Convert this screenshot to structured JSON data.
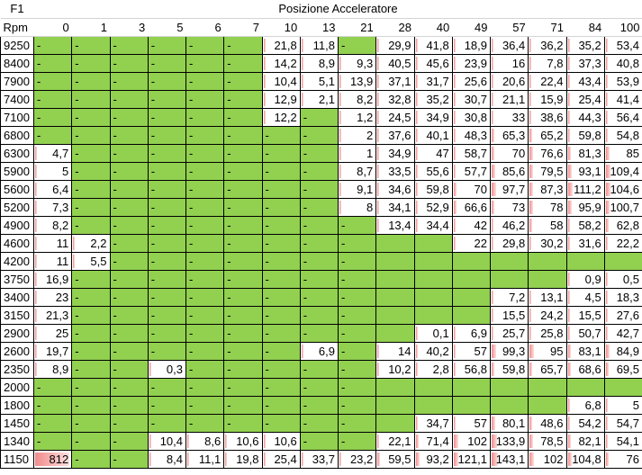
{
  "header": {
    "corner": "F1",
    "title": "Posizione Acceleratore"
  },
  "table": {
    "columns": [
      "Rpm",
      "0",
      "1",
      "3",
      "5",
      "6",
      "7",
      "10",
      "13",
      "21",
      "28",
      "40",
      "49",
      "57",
      "71",
      "84",
      "100"
    ],
    "rows": [
      [
        "9250",
        "-",
        "-",
        "-",
        "-",
        "-",
        "-",
        "21,8",
        "11,8",
        "-",
        "29,9",
        "41,8",
        "18,9",
        "36,4",
        "36,2",
        "35,2",
        "53,4"
      ],
      [
        "8400",
        "-",
        "-",
        "-",
        "-",
        "-",
        "-",
        "14,2",
        "8,9",
        "9,3",
        "40,5",
        "45,6",
        "23,9",
        "16",
        "7,8",
        "37,3",
        "40,8"
      ],
      [
        "7900",
        "-",
        "-",
        "-",
        "-",
        "-",
        "-",
        "10,4",
        "5,1",
        "13,9",
        "37,1",
        "31,7",
        "25,6",
        "20,6",
        "22,4",
        "43,4",
        "53,9"
      ],
      [
        "7400",
        "-",
        "-",
        "-",
        "-",
        "-",
        "-",
        "12,9",
        "2,1",
        "8,2",
        "32,8",
        "35,2",
        "30,7",
        "21,1",
        "15,9",
        "25,4",
        "41,4"
      ],
      [
        "7100",
        "-",
        "-",
        "-",
        "-",
        "-",
        "-",
        "12,2",
        "-",
        "1,2",
        "24,5",
        "34,9",
        "30,8",
        "33",
        "38,6",
        "44,3",
        "56,4"
      ],
      [
        "6800",
        "-",
        "-",
        "-",
        "-",
        "-",
        "-",
        "-",
        "-",
        "2",
        "37,6",
        "40,1",
        "48,3",
        "65,3",
        "65,2",
        "59,8",
        "54,8"
      ],
      [
        "6300",
        "4,7",
        "-",
        "-",
        "-",
        "-",
        "-",
        "-",
        "-",
        "1",
        "34,9",
        "47",
        "58,7",
        "70",
        "76,6",
        "81,3",
        "85"
      ],
      [
        "5900",
        "5",
        "-",
        "-",
        "-",
        "-",
        "-",
        "-",
        "-",
        "8,7",
        "33,5",
        "55,6",
        "57,7",
        "85,6",
        "79,5",
        "93,1",
        "109,4"
      ],
      [
        "5600",
        "6,4",
        "-",
        "-",
        "-",
        "-",
        "-",
        "-",
        "-",
        "9,1",
        "34,6",
        "59,8",
        "70",
        "97,7",
        "87,3",
        "111,2",
        "104,6"
      ],
      [
        "5200",
        "7,3",
        "-",
        "-",
        "-",
        "-",
        "-",
        "-",
        "-",
        "8",
        "34,1",
        "52,9",
        "66,6",
        "73",
        "78",
        "95,9",
        "100,7"
      ],
      [
        "4900",
        "8,2",
        "-",
        "-",
        "-",
        "-",
        "-",
        "-",
        "-",
        "-",
        "13,4",
        "34,4",
        "42",
        "46,2",
        "58",
        "58,2",
        "62,8"
      ],
      [
        "4600",
        "11",
        "2,2",
        "-",
        "-",
        "-",
        "-",
        "-",
        "-",
        "-",
        null,
        null,
        "22",
        "29,8",
        "30,2",
        "31,6",
        "22,2"
      ],
      [
        "4200",
        "11",
        "5,5",
        "-",
        "-",
        "-",
        "-",
        "-",
        "-",
        "-",
        null,
        null,
        null,
        null,
        null,
        null,
        null
      ],
      [
        "3750",
        "16,9",
        "-",
        "-",
        "-",
        "-",
        "-",
        "-",
        "-",
        "-",
        null,
        null,
        null,
        null,
        null,
        "0,9",
        "0,5"
      ],
      [
        "3400",
        "23",
        "-",
        "-",
        "-",
        "-",
        "-",
        "-",
        "-",
        "-",
        null,
        null,
        null,
        "7,2",
        "13,1",
        "4,5",
        "18,3"
      ],
      [
        "3150",
        "21,3",
        "-",
        "-",
        "-",
        "-",
        "-",
        "-",
        "-",
        "-",
        null,
        null,
        null,
        "15,5",
        "24,2",
        "15,5",
        "27,6"
      ],
      [
        "2900",
        "25",
        "-",
        "-",
        "-",
        "-",
        "-",
        "-",
        "-",
        "-",
        null,
        "0,1",
        "6,9",
        "25,7",
        "25,8",
        "50,7",
        "42,7"
      ],
      [
        "2600",
        "19,7",
        "-",
        "-",
        "-",
        "-",
        "-",
        "-",
        "6,9",
        "-",
        "14",
        "40,2",
        "57",
        "99,3",
        "95",
        "83,1",
        "84,9"
      ],
      [
        "2350",
        "8,9",
        "-",
        "-",
        "0,3",
        "-",
        "-",
        "-",
        "-",
        "-",
        "10,2",
        "2,8",
        "56,8",
        "59,8",
        "65,7",
        "68,6",
        "69,5"
      ],
      [
        "2000",
        "-",
        "-",
        "-",
        "-",
        "-",
        "-",
        "-",
        "-",
        "-",
        null,
        null,
        null,
        null,
        null,
        null,
        null
      ],
      [
        "1800",
        "-",
        "-",
        "-",
        "-",
        "-",
        "-",
        "-",
        "-",
        "-",
        null,
        null,
        null,
        null,
        null,
        "6,8",
        "5"
      ],
      [
        "1450",
        "-",
        "-",
        "-",
        "-",
        "-",
        "-",
        "-",
        "-",
        "-",
        null,
        "34,7",
        "57",
        "80,1",
        "48,6",
        "54,2",
        "54,7"
      ],
      [
        "1340",
        "-",
        "-",
        "-",
        "10,4",
        "8,6",
        "10,6",
        "10,6",
        "-",
        "-",
        "22,1",
        "71,4",
        "102",
        "133,9",
        "78,5",
        "82,1",
        "54,1"
      ],
      [
        "1150",
        "812",
        "-",
        "-",
        "8,4",
        "11,1",
        "19,8",
        "25,4",
        "33,7",
        "23,2",
        "59,5",
        "93,2",
        "121,1",
        "143,1",
        "102",
        "104,8",
        "76"
      ]
    ]
  }
}
